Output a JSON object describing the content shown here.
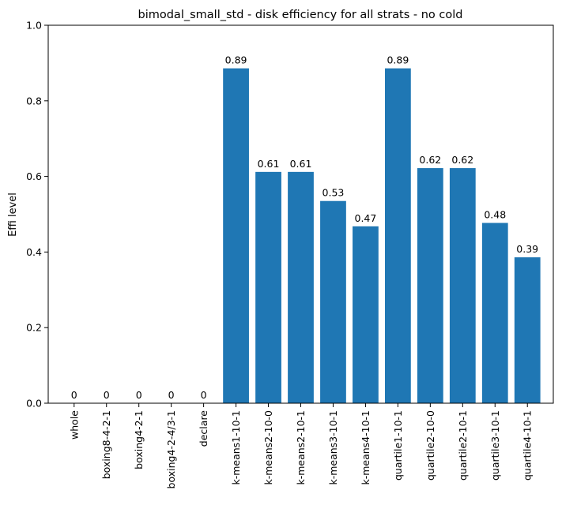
{
  "chart_data": {
    "type": "bar",
    "title": "bimodal_small_std - disk efficiency for all strats - no cold",
    "xlabel": "",
    "ylabel": "Effi level",
    "ylim": [
      0,
      1.0
    ],
    "yticks": [
      "0.0",
      "0.2",
      "0.4",
      "0.6",
      "0.8",
      "1.0"
    ],
    "categories": [
      "whole",
      "boxing8-4-2-1",
      "boxing4-2-1",
      "boxing4-2-4/3-1",
      "declare",
      "k-means1-10-1",
      "k-means2-10-0",
      "k-means2-10-1",
      "k-means3-10-1",
      "k-means4-10-1",
      "quartile1-10-1",
      "quartile2-10-0",
      "quartile2-10-1",
      "quartile3-10-1",
      "quartile4-10-1"
    ],
    "values": [
      0,
      0,
      0,
      0,
      0,
      0.886,
      0.612,
      0.612,
      0.535,
      0.468,
      0.886,
      0.622,
      0.622,
      0.477,
      0.386
    ],
    "data_labels": [
      "0",
      "0",
      "0",
      "0",
      "0",
      "0.89",
      "0.61",
      "0.61",
      "0.53",
      "0.47",
      "0.89",
      "0.62",
      "0.62",
      "0.48",
      "0.39"
    ],
    "grid": false,
    "legend": "none",
    "colors": {
      "bar": "#1f77b4",
      "axis": "#000000",
      "background": "#ffffff"
    }
  }
}
